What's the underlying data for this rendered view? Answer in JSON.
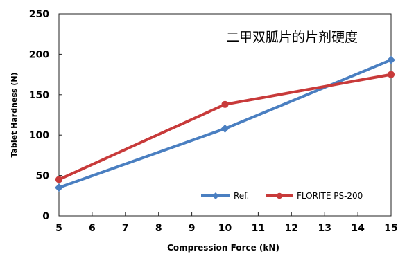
{
  "chart_data": {
    "type": "line",
    "title": "二甲双胍片的片剂硬度",
    "xlabel": "Compression Force (kN)",
    "ylabel": "Tablet Hardness (N)",
    "xlim": [
      5,
      15
    ],
    "ylim": [
      0,
      250
    ],
    "x_ticks": [
      5,
      6,
      7,
      8,
      9,
      10,
      11,
      12,
      13,
      14,
      15
    ],
    "y_ticks": [
      0,
      50,
      100,
      150,
      200,
      250
    ],
    "grid": false,
    "legend_position": "bottom-right",
    "series": [
      {
        "name": "Ref.",
        "color": "#4a7fc1",
        "marker": "diamond",
        "x": [
          5,
          10,
          15
        ],
        "y": [
          35,
          108,
          193
        ]
      },
      {
        "name": "FLORITE PS-200",
        "color": "#c83a3a",
        "marker": "circle",
        "x": [
          5,
          10,
          15
        ],
        "y": [
          45,
          138,
          175
        ]
      }
    ]
  }
}
